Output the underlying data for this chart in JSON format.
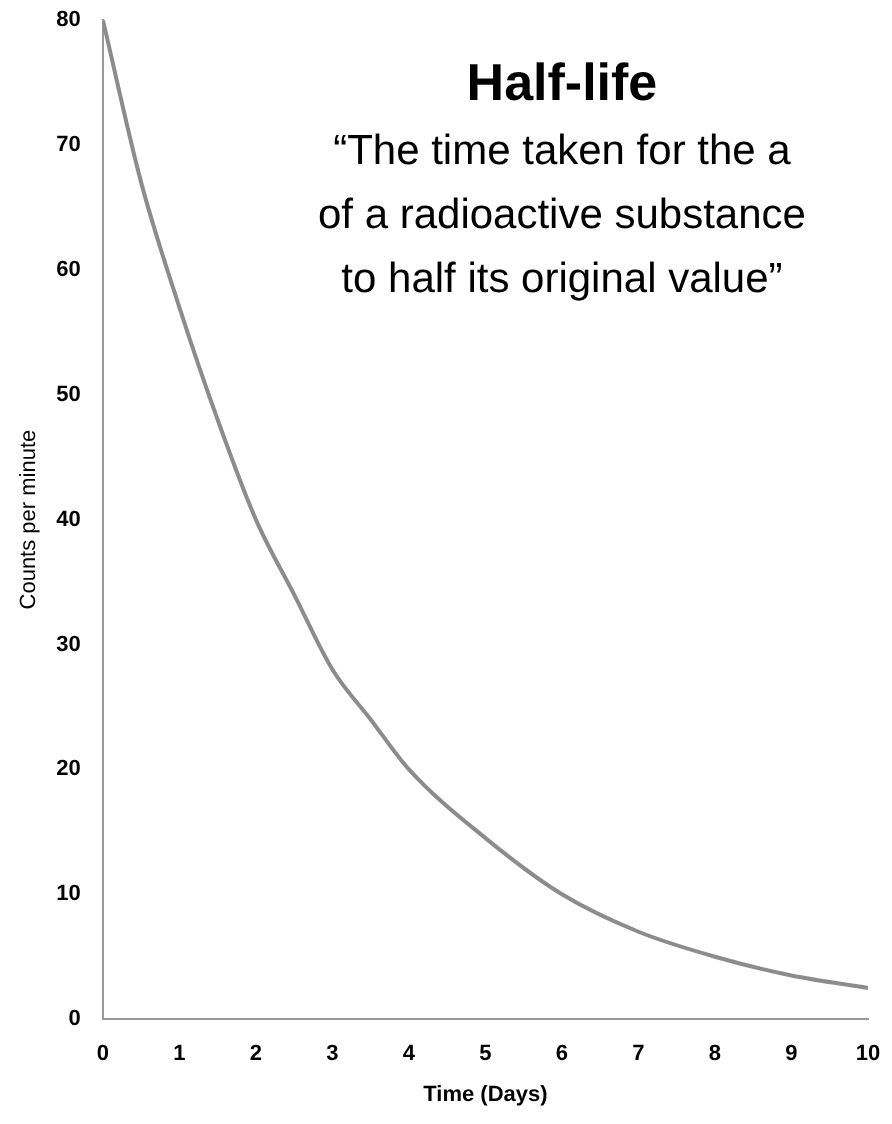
{
  "chart_data": {
    "type": "line",
    "title": "Half-life",
    "annotations": [
      "“The time taken for the a",
      "of a radioactive substance",
      "to half its original value”"
    ],
    "xlabel": "Time (Days)",
    "ylabel": "Counts per minute",
    "x": [
      0,
      0.5,
      1,
      1.5,
      2,
      2.5,
      3,
      3.5,
      4,
      5,
      6,
      7,
      8,
      9,
      10
    ],
    "series": [
      {
        "color": "#8c8c8c",
        "values": [
          80,
          67,
          57,
          48,
          40,
          34,
          28,
          24,
          20,
          14.5,
          10,
          7,
          5,
          3.5,
          2.5
        ]
      }
    ],
    "xlim": [
      0,
      10
    ],
    "xticks": [
      0,
      1,
      2,
      3,
      4,
      5,
      6,
      7,
      8,
      9,
      10
    ],
    "ylim": [
      0,
      80
    ],
    "yticks": [
      0,
      10,
      20,
      30,
      40,
      50,
      60,
      70,
      80
    ],
    "grid": false,
    "legend": false,
    "marker": "none",
    "line_style": "solid"
  }
}
